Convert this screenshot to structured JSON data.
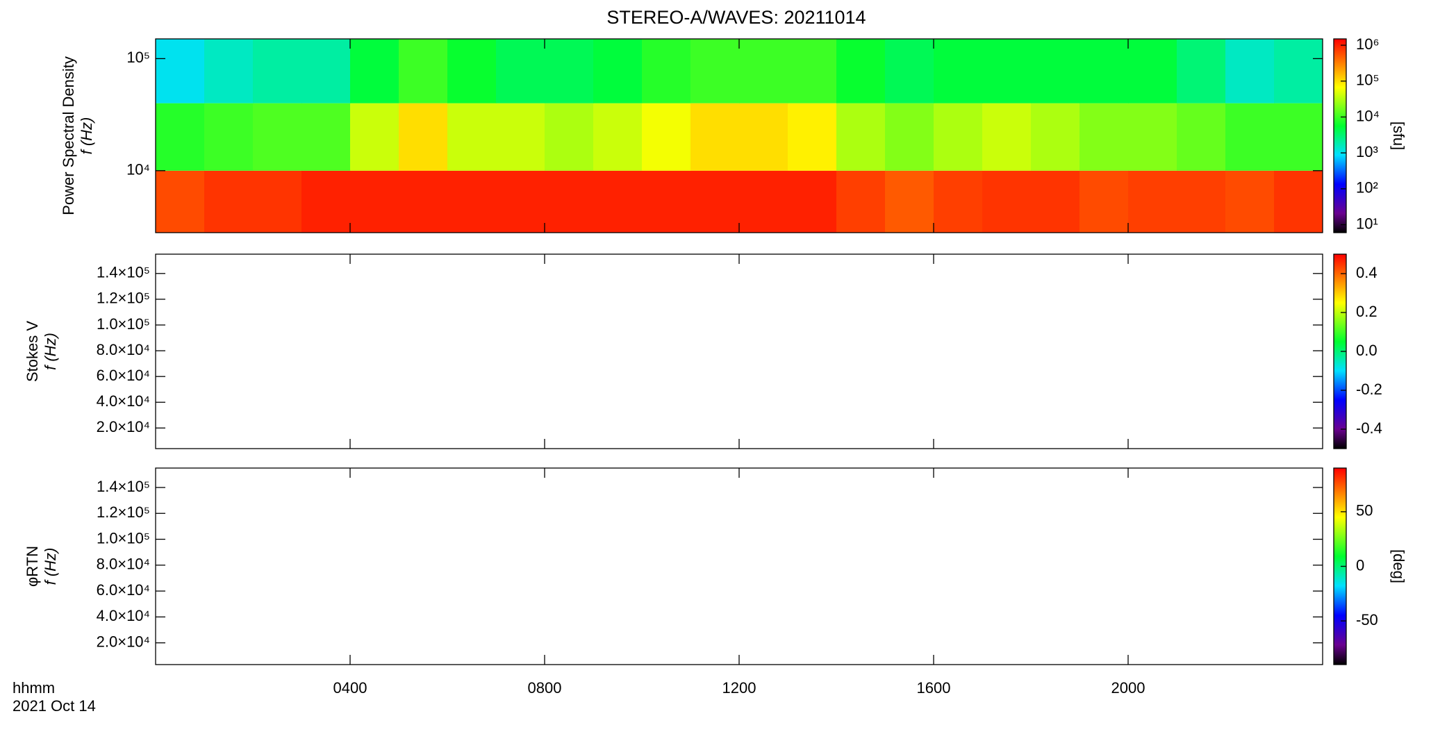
{
  "chart_data": [
    {
      "type": "heatmap",
      "title": "STEREO-A/WAVES: 20211014",
      "ylabel": [
        "Power Spectral Density",
        "f (Hz)"
      ],
      "ylog": true,
      "ylim": [
        2800,
        150000
      ],
      "yticks": [
        {
          "value": 10000,
          "label": "10⁴"
        },
        {
          "value": 100000,
          "label": "10⁵"
        }
      ],
      "xbins": [
        0,
        1,
        2,
        3,
        4,
        5,
        6,
        7,
        8,
        9,
        10,
        11,
        12,
        13,
        14,
        15,
        16,
        17,
        18,
        19,
        20,
        21,
        22,
        23,
        24
      ],
      "ybins": [
        2800,
        10000,
        40000,
        150000
      ],
      "z": [
        [
          600000,
          800000,
          800000,
          1000000,
          1000000,
          1000000,
          1000000,
          1000000,
          1000000,
          1000000,
          1000000,
          1000000,
          1000000,
          1000000,
          700000,
          500000,
          700000,
          800000,
          800000,
          600000,
          700000,
          700000,
          600000,
          800000
        ],
        [
          8000,
          10000,
          12000,
          12000,
          40000,
          100000,
          40000,
          40000,
          30000,
          40000,
          60000,
          100000,
          100000,
          80000,
          30000,
          20000,
          30000,
          40000,
          30000,
          20000,
          20000,
          15000,
          10000,
          10000
        ],
        [
          1000,
          1500,
          2000,
          2000,
          5000,
          10000,
          6000,
          4000,
          4000,
          5000,
          8000,
          10000,
          10000,
          10000,
          6000,
          4000,
          5000,
          5000,
          5000,
          5000,
          5000,
          3000,
          1500,
          2000
        ]
      ],
      "colorbar": {
        "log": true,
        "lim": [
          6,
          1500000
        ],
        "label": "[sfu]",
        "ticks": [
          {
            "value": 10,
            "label": "10¹"
          },
          {
            "value": 100,
            "label": "10²"
          },
          {
            "value": 1000,
            "label": "10³"
          },
          {
            "value": 10000,
            "label": "10⁴"
          },
          {
            "value": 100000,
            "label": "10⁵"
          },
          {
            "value": 1000000,
            "label": "10⁶"
          }
        ]
      }
    },
    {
      "type": "heatmap",
      "ylabel": [
        "Stokes V",
        "f (Hz)"
      ],
      "ylog": false,
      "ylim": [
        4000,
        155000
      ],
      "yticks": [
        {
          "value": 20000,
          "label": "2.0×10⁴"
        },
        {
          "value": 40000,
          "label": "4.0×10⁴"
        },
        {
          "value": 60000,
          "label": "6.0×10⁴"
        },
        {
          "value": 80000,
          "label": "8.0×10⁴"
        },
        {
          "value": 100000,
          "label": "1.0×10⁵"
        },
        {
          "value": 120000,
          "label": "1.2×10⁵"
        },
        {
          "value": 140000,
          "label": "1.4×10⁵"
        }
      ],
      "colorbar": {
        "log": false,
        "lim": [
          -0.5,
          0.5
        ],
        "ticks": [
          -0.4,
          -0.2,
          {
            "value": 0,
            "label": "0.0"
          },
          0.2,
          0.4
        ]
      }
    },
    {
      "type": "heatmap",
      "ylabel": [
        "φRTN",
        "f (Hz)"
      ],
      "ylog": false,
      "ylim": [
        3200,
        155000
      ],
      "yticks": [
        {
          "value": 20000,
          "label": "2.0×10⁴"
        },
        {
          "value": 40000,
          "label": "4.0×10⁴"
        },
        {
          "value": 60000,
          "label": "6.0×10⁴"
        },
        {
          "value": 80000,
          "label": "8.0×10⁴"
        },
        {
          "value": 100000,
          "label": "1.0×10⁵"
        },
        {
          "value": 120000,
          "label": "1.2×10⁵"
        },
        {
          "value": 140000,
          "label": "1.4×10⁵"
        }
      ],
      "colorbar": {
        "log": false,
        "lim": [
          -90,
          90
        ],
        "label": "[deg]",
        "ticks": [
          -50,
          0,
          50
        ]
      },
      "xlim": [
        0,
        24
      ],
      "xticks": [
        {
          "value": 4,
          "label": "0400"
        },
        {
          "value": 8,
          "label": "0800"
        },
        {
          "value": 12,
          "label": "1200"
        },
        {
          "value": 16,
          "label": "1600"
        },
        {
          "value": 20,
          "label": "2000"
        }
      ],
      "xlabel": "hhmm",
      "date": "2021 Oct 14"
    }
  ]
}
